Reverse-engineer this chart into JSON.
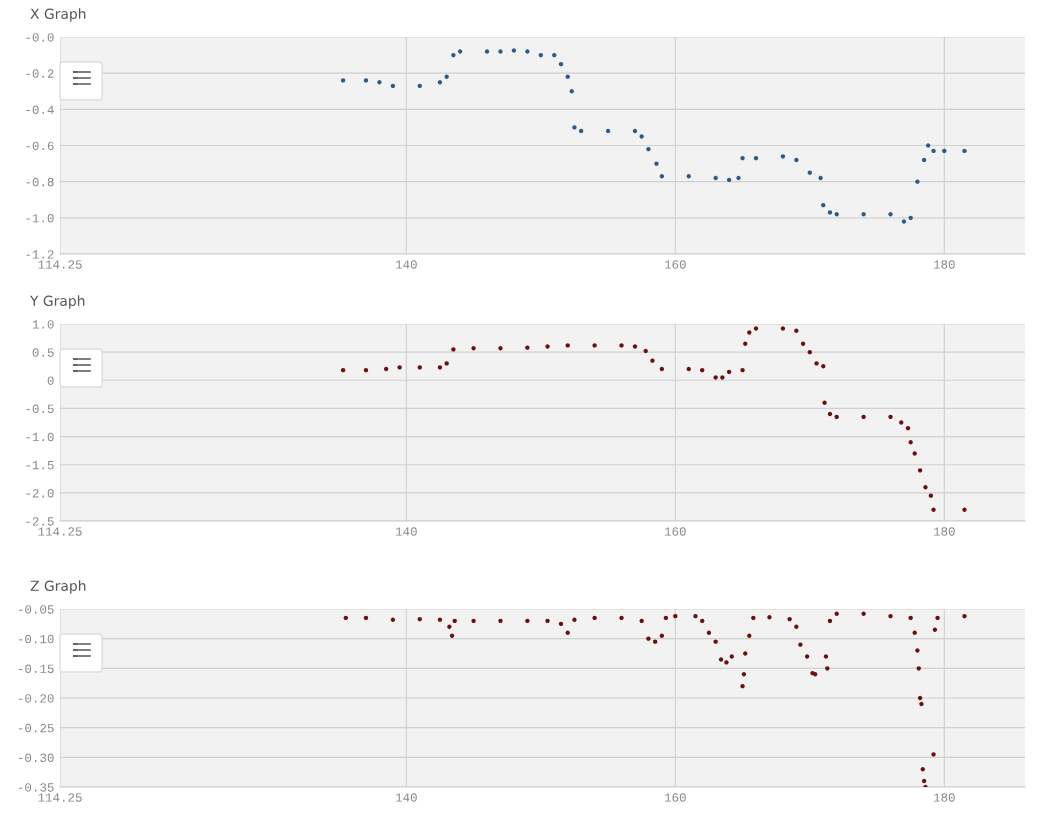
{
  "chart_data": [
    {
      "type": "scatter",
      "title": "X Graph",
      "marker": "circle",
      "grid": true,
      "xlim": [
        114.25,
        186
      ],
      "xticks": [
        114.25,
        140,
        160,
        180
      ],
      "ylim": [
        -1.2,
        0
      ],
      "yticks": [
        {
          "value": 0,
          "label": "-0.0"
        },
        -0.2,
        -0.4,
        -0.6,
        -0.8,
        {
          "value": -1,
          "label": "-1.0"
        },
        -1.2
      ],
      "x": [
        135.3,
        137,
        138,
        139,
        141,
        142.5,
        143,
        143.5,
        144,
        146,
        147,
        148,
        149,
        150,
        151,
        151.5,
        152,
        152.3,
        152.5,
        153,
        155,
        157,
        157.5,
        158,
        158.6,
        159,
        161,
        163,
        164,
        164.7,
        165,
        166,
        168,
        169,
        170,
        170.8,
        171,
        171.5,
        172,
        174,
        176,
        177,
        177.5,
        178,
        178.5,
        178.8,
        179.2,
        180,
        181.5
      ],
      "series": [
        {
          "color": "#2c5a8c",
          "values": [
            -0.24,
            -0.24,
            -0.25,
            -0.27,
            -0.27,
            -0.25,
            -0.22,
            -0.1,
            -0.08,
            -0.08,
            -0.08,
            -0.075,
            -0.08,
            -0.1,
            -0.1,
            -0.15,
            -0.22,
            -0.3,
            -0.5,
            -0.52,
            -0.52,
            -0.52,
            -0.55,
            -0.62,
            -0.7,
            -0.77,
            -0.77,
            -0.78,
            -0.79,
            -0.78,
            -0.67,
            -0.67,
            -0.66,
            -0.68,
            -0.75,
            -0.78,
            -0.93,
            -0.97,
            -0.98,
            -0.98,
            -0.98,
            -1.02,
            -1.0,
            -0.8,
            -0.68,
            -0.6,
            -0.63,
            -0.63,
            -0.63
          ]
        }
      ]
    },
    {
      "type": "scatter",
      "title": "Y Graph",
      "marker": "circle",
      "grid": true,
      "xlim": [
        114.25,
        186
      ],
      "xticks": [
        114.25,
        140,
        160,
        180
      ],
      "ylim": [
        -2.5,
        1
      ],
      "yticks": [
        {
          "value": 1,
          "label": "1.0"
        },
        0.5,
        0,
        -0.5,
        {
          "value": -1,
          "label": "-1.0"
        },
        -1.5,
        {
          "value": -2,
          "label": "-2.0"
        },
        -2.5
      ],
      "x": [
        135.3,
        137,
        138.5,
        139.5,
        141,
        142.5,
        143,
        143.5,
        145,
        147,
        149,
        150.5,
        152,
        154,
        156,
        157,
        157.8,
        158.3,
        159,
        161,
        162,
        163,
        163.5,
        164,
        165,
        165.2,
        165.5,
        166,
        168,
        169,
        169.5,
        170,
        170.5,
        171,
        171.1,
        171.5,
        172,
        174,
        176,
        176.8,
        177.3,
        177.5,
        177.8,
        178.2,
        178.6,
        179,
        179.2,
        181.5
      ],
      "series": [
        {
          "color": "#6b0f0f",
          "values": [
            0.18,
            0.18,
            0.2,
            0.23,
            0.23,
            0.23,
            0.3,
            0.55,
            0.57,
            0.57,
            0.58,
            0.6,
            0.62,
            0.62,
            0.62,
            0.6,
            0.52,
            0.35,
            0.2,
            0.2,
            0.18,
            0.05,
            0.05,
            0.15,
            0.18,
            0.65,
            0.85,
            0.92,
            0.92,
            0.88,
            0.65,
            0.5,
            0.3,
            0.25,
            -0.4,
            -0.6,
            -0.65,
            -0.65,
            -0.65,
            -0.75,
            -0.85,
            -1.1,
            -1.3,
            -1.6,
            -1.9,
            -2.05,
            -2.3,
            -2.3
          ]
        }
      ]
    },
    {
      "type": "scatter",
      "title": "Z Graph",
      "marker": "circle",
      "grid": true,
      "xlim": [
        114.25,
        186
      ],
      "xticks": [
        114.25,
        140,
        160,
        180
      ],
      "ylim": [
        -0.35,
        -0.05
      ],
      "yticks": [
        -0.05,
        {
          "value": -0.1,
          "label": "-0.10"
        },
        -0.15,
        {
          "value": -0.2,
          "label": "-0.20"
        },
        -0.25,
        {
          "value": -0.3,
          "label": "-0.30"
        },
        -0.35
      ],
      "x": [
        135.5,
        137,
        139,
        141,
        142.5,
        143.2,
        143.4,
        143.6,
        145,
        147,
        149,
        150.5,
        151.5,
        152,
        152.5,
        154,
        156,
        157.5,
        158,
        158.5,
        159,
        159.3,
        160,
        161.5,
        162,
        162.5,
        163,
        163.4,
        163.8,
        164.2,
        165,
        165.1,
        165.2,
        165.5,
        165.8,
        167,
        168.5,
        169,
        169.3,
        169.8,
        170.2,
        170.4,
        171.2,
        171.3,
        171.5,
        172,
        174,
        176,
        177.5,
        177.8,
        178,
        178.1,
        178.2,
        178.3,
        178.4,
        178.5,
        178.6,
        179.2,
        179.3,
        179.5,
        181.5
      ],
      "series": [
        {
          "color": "#6b0f0f",
          "values": [
            -0.065,
            -0.065,
            -0.068,
            -0.067,
            -0.068,
            -0.08,
            -0.095,
            -0.07,
            -0.07,
            -0.07,
            -0.07,
            -0.07,
            -0.075,
            -0.09,
            -0.068,
            -0.065,
            -0.065,
            -0.07,
            -0.1,
            -0.105,
            -0.095,
            -0.065,
            -0.062,
            -0.062,
            -0.07,
            -0.09,
            -0.105,
            -0.135,
            -0.14,
            -0.13,
            -0.18,
            -0.16,
            -0.125,
            -0.095,
            -0.065,
            -0.064,
            -0.067,
            -0.08,
            -0.11,
            -0.13,
            -0.158,
            -0.16,
            -0.13,
            -0.15,
            -0.07,
            -0.058,
            -0.058,
            -0.062,
            -0.065,
            -0.09,
            -0.12,
            -0.15,
            -0.2,
            -0.21,
            -0.32,
            -0.34,
            -0.35,
            -0.295,
            -0.085,
            -0.065,
            -0.062
          ]
        }
      ]
    }
  ]
}
